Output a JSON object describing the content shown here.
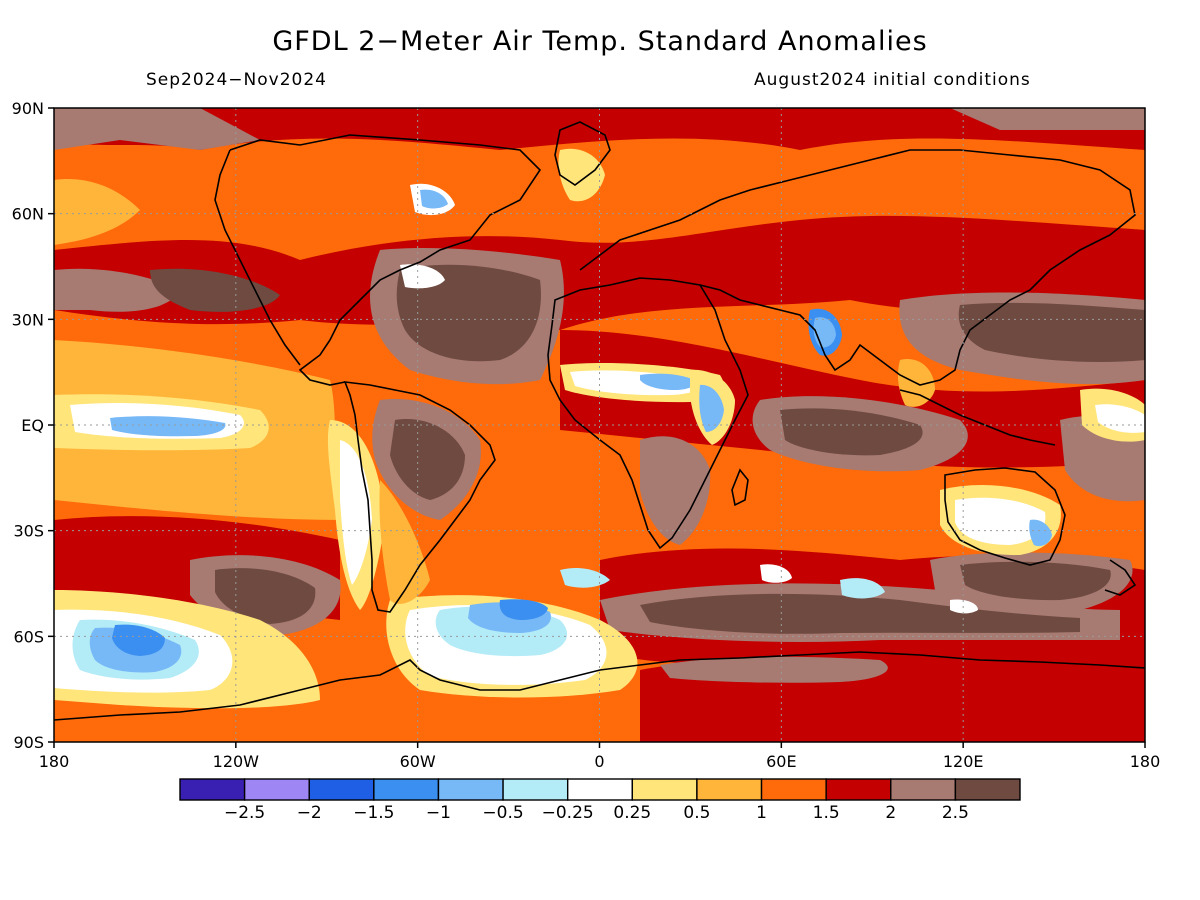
{
  "title": "GFDL 2−Meter Air Temp. Standard Anomalies",
  "period": "Sep2024−Nov2024",
  "init": "August2024 initial conditions",
  "lat_ticks": [
    {
      "label": "90N",
      "lat": 90
    },
    {
      "label": "60N",
      "lat": 60
    },
    {
      "label": "30N",
      "lat": 30
    },
    {
      "label": "EQ",
      "lat": 0
    },
    {
      "label": "30S",
      "lat": -30
    },
    {
      "label": "60S",
      "lat": -60
    },
    {
      "label": "90S",
      "lat": -90
    }
  ],
  "lon_ticks": [
    {
      "label": "180",
      "lon": -180
    },
    {
      "label": "120W",
      "lon": -120
    },
    {
      "label": "60W",
      "lon": -60
    },
    {
      "label": "0",
      "lon": 0
    },
    {
      "label": "60E",
      "lon": 60
    },
    {
      "label": "120E",
      "lon": 120
    },
    {
      "label": "180",
      "lon": 180
    }
  ],
  "colorbar": {
    "colors": [
      "#3a1fb3",
      "#9f86f5",
      "#1f5fe6",
      "#3b8ff0",
      "#77b8f7",
      "#b3ebf7",
      "#ffffff",
      "#ffe57a",
      "#ffb43a",
      "#ff6a0a",
      "#c40000",
      "#a77a72",
      "#6e4a40"
    ],
    "labels": [
      "−2.5",
      "−2",
      "−1.5",
      "−1",
      "−0.5",
      "−0.25",
      "0.25",
      "0.5",
      "1",
      "1.5",
      "2",
      "2.5"
    ],
    "thresholds": [
      -2.5,
      -2,
      -1.5,
      -1,
      -0.5,
      -0.25,
      0.25,
      0.5,
      1,
      1.5,
      2,
      2.5
    ]
  }
}
